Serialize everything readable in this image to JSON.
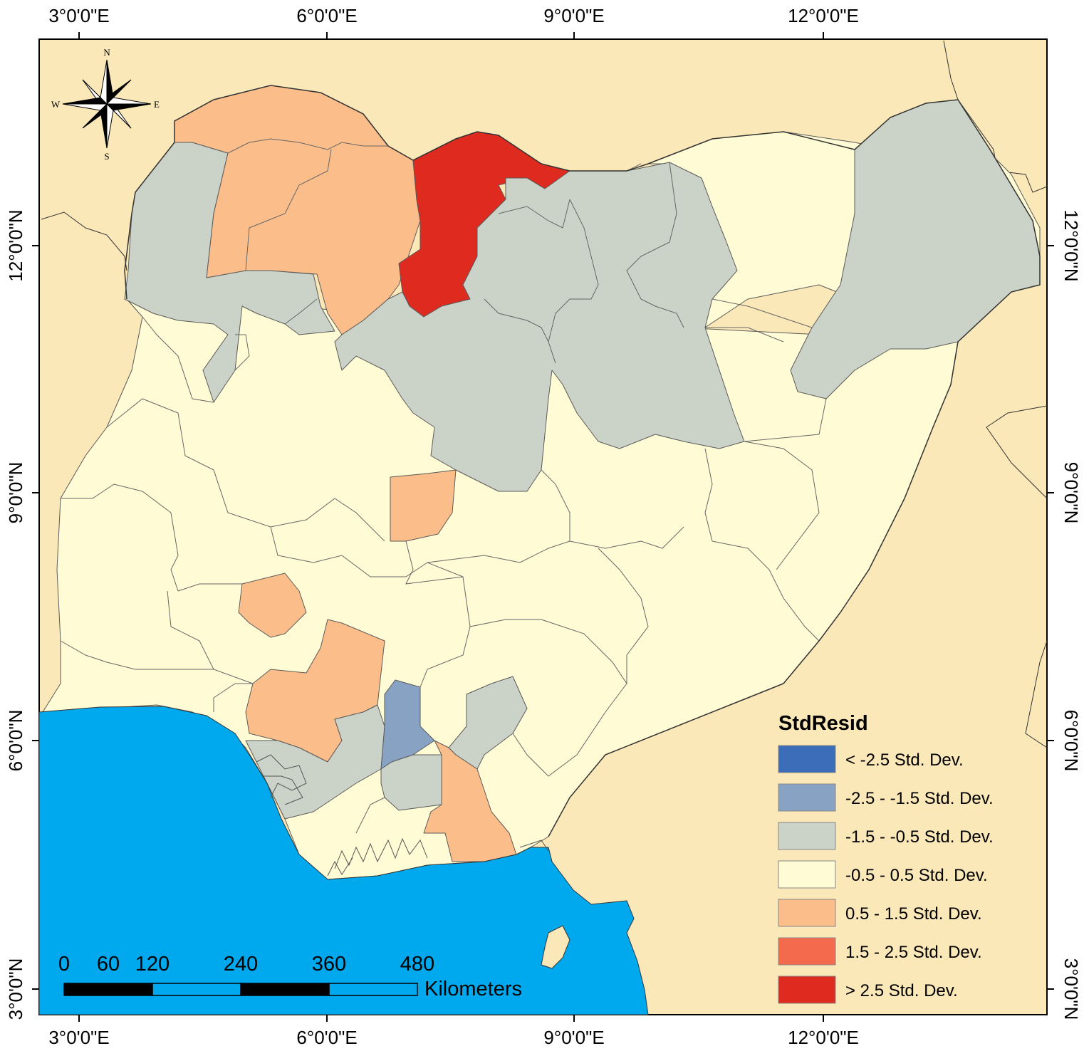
{
  "colors": {
    "frame_background": "#FBE8B8",
    "ocean": "#00A9EE",
    "country_border": "#333333",
    "state_border": "#5a5a5a"
  },
  "graticule": {
    "longitudes": [
      "3°0'0\"E",
      "6°0'0\"E",
      "9°0'0\"E",
      "12°0'0\"E"
    ],
    "latitudes": [
      "12°0'0\"N",
      "9°0'0\"N",
      "6°0'0\"N",
      "3°0'0\"N"
    ]
  },
  "compass": {
    "n": "N",
    "s": "S",
    "e": "E",
    "w": "W"
  },
  "legend": {
    "title": "StdResid",
    "classes": [
      {
        "label": "< -2.5 Std. Dev.",
        "color": "#3C6DB9"
      },
      {
        "label": "-2.5 - -1.5 Std. Dev.",
        "color": "#87A2C3"
      },
      {
        "label": "-1.5 - -0.5 Std. Dev.",
        "color": "#CBD2C8"
      },
      {
        "label": "-0.5 - 0.5 Std. Dev.",
        "color": "#FFFBD5"
      },
      {
        "label": "0.5 - 1.5 Std. Dev.",
        "color": "#FBBE8B"
      },
      {
        "label": "1.5 - 2.5 Std. Dev.",
        "color": "#F36B4C"
      },
      {
        "label": "> 2.5 Std. Dev.",
        "color": "#DF2A20"
      }
    ]
  },
  "scale_bar": {
    "ticks": [
      "0",
      "60",
      "120",
      "240",
      "360",
      "480"
    ],
    "unit": "Kilometers",
    "colors": [
      "#000000",
      "#00A9EE"
    ]
  }
}
